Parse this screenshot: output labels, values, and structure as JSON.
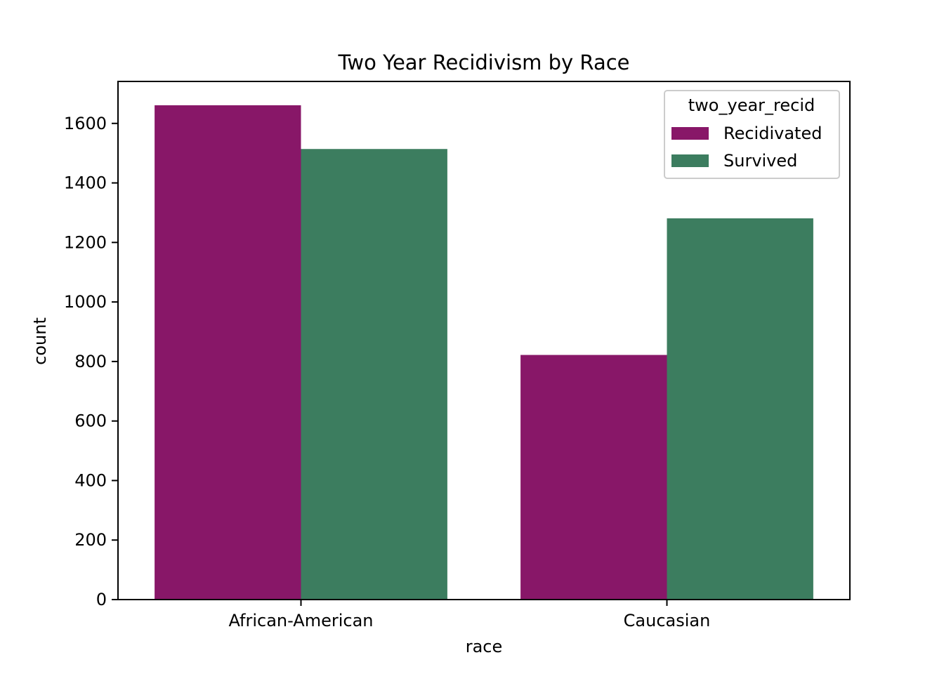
{
  "chart_data": {
    "type": "bar",
    "title": "Two Year Recidivism by Race",
    "xlabel": "race",
    "ylabel": "count",
    "categories": [
      "African-American",
      "Caucasian"
    ],
    "series": [
      {
        "name": "Recidivated",
        "values": [
          1661,
          822
        ]
      },
      {
        "name": "Survived",
        "values": [
          1514,
          1281
        ]
      }
    ],
    "ylim": [
      0,
      1741
    ],
    "yticks": [
      0,
      200,
      400,
      600,
      800,
      1000,
      1200,
      1400,
      1600
    ],
    "legend": {
      "title": "two_year_recid",
      "position": "top-right"
    },
    "grid": false
  },
  "colors": {
    "Recidivated": "#881768",
    "Survived": "#3c7d5f"
  }
}
